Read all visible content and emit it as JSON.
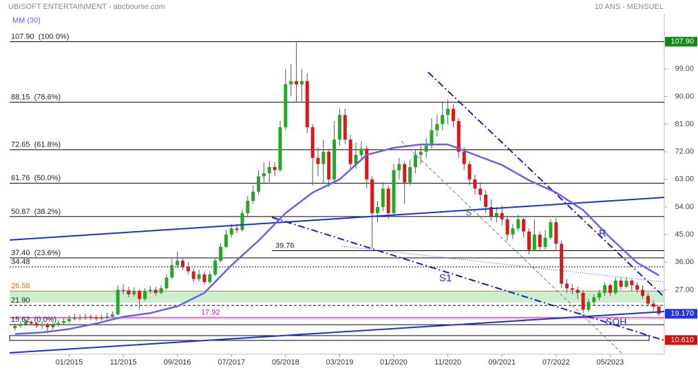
{
  "header": {
    "title": "UBISOFT ENTERTAINMENT - abcbourse.com",
    "period": "10 ANS - MENSUEL"
  },
  "chart_data": {
    "type": "candlestick",
    "open": [
      14.5,
      15.2,
      15.8,
      16.5,
      16.0,
      15.3,
      15.8,
      14.8,
      15.5,
      16.2,
      16.8,
      17.5,
      18.0,
      17.8,
      18.2,
      18.0,
      17.6,
      17.9,
      18.3,
      19.0,
      27.0,
      26.8,
      25.5,
      26.5,
      24.0,
      26.5,
      27.0,
      26.0,
      27.5,
      31.0,
      35.0,
      36.5,
      34.5,
      33.0,
      30.5,
      32.0,
      29.5,
      32.0,
      36.5,
      41.0,
      45.0,
      47.0,
      46.5,
      52.0,
      56.0,
      59.0,
      64.0,
      65.0,
      67.0,
      66.0,
      80.0,
      94.0,
      95.0,
      94.0,
      95.0,
      80.0,
      70.0,
      68.0,
      72.0,
      63.0,
      76.0,
      84.0,
      76.0,
      68.0,
      71.0,
      73.0,
      63.0,
      52.0,
      54.0,
      60.0,
      52.0,
      66.0,
      68.0,
      62.0,
      67.0,
      71.0,
      72.0,
      74.0,
      79.0,
      81.0,
      84.0,
      86.0,
      82.0,
      72.0,
      68.0,
      63.0,
      60.0,
      58.0,
      54.0,
      51.0,
      52.0,
      50.0,
      45.0,
      47.0,
      50.0,
      46.0,
      40.0,
      45.0,
      41.0,
      44.0,
      49.0,
      42.0,
      29.0,
      27.5,
      27.0,
      26.0,
      20.5,
      23.0,
      24.5,
      26.0,
      28.5,
      26.0,
      30.0,
      28.0,
      30.0,
      28.5,
      27.0,
      25.0,
      22.5,
      21.5
    ],
    "high": [
      16.0,
      16.5,
      17.2,
      17.0,
      16.6,
      16.4,
      16.2,
      16.3,
      17.0,
      17.8,
      18.6,
      19.2,
      19.0,
      19.3,
      19.0,
      18.8,
      18.9,
      19.5,
      20.0,
      28.5,
      28.8,
      28.0,
      27.8,
      27.2,
      27.5,
      28.2,
      28.0,
      28.5,
      32.0,
      37.0,
      39.5,
      37.5,
      36.0,
      34.0,
      33.5,
      33.0,
      33.0,
      37.5,
      42.0,
      46.5,
      48.5,
      48.5,
      53.0,
      57.5,
      61.0,
      66.0,
      68.5,
      69.0,
      68.5,
      82.0,
      99.0,
      100.5,
      107.9,
      99.0,
      97.5,
      81.0,
      73.5,
      76.0,
      73.0,
      82.0,
      86.0,
      86.0,
      77.5,
      75.0,
      75.5,
      74.0,
      64.0,
      56.0,
      62.0,
      61.0,
      68.0,
      70.0,
      69.0,
      69.5,
      72.5,
      74.5,
      76.5,
      83.0,
      84.0,
      88.0,
      89.0,
      87.5,
      83.0,
      73.5,
      69.0,
      64.5,
      62.0,
      59.5,
      56.5,
      54.0,
      54.5,
      51.0,
      48.5,
      51.5,
      50.5,
      47.0,
      50.0,
      46.0,
      46.5,
      50.0,
      50.5,
      43.0,
      30.5,
      29.0,
      28.0,
      27.0,
      24.0,
      25.5,
      27.0,
      29.5,
      29.0,
      31.0,
      31.0,
      31.0,
      30.5,
      29.5,
      28.5,
      26.0,
      23.5,
      22.0
    ],
    "low": [
      13.8,
      14.6,
      15.2,
      15.4,
      14.5,
      14.2,
      12.8,
      14.0,
      15.0,
      15.8,
      16.2,
      17.0,
      17.0,
      17.2,
      17.1,
      16.8,
      17.0,
      17.4,
      17.9,
      18.6,
      25.6,
      24.6,
      24.8,
      20.5,
      23.4,
      25.8,
      25.0,
      25.5,
      27.0,
      30.5,
      34.0,
      33.5,
      32.0,
      29.5,
      29.8,
      28.8,
      29.0,
      31.5,
      36.0,
      40.5,
      44.0,
      45.5,
      46.0,
      51.0,
      55.0,
      58.0,
      61.5,
      62.0,
      64.0,
      65.5,
      79.0,
      90.0,
      88.0,
      88.0,
      78.0,
      61.0,
      64.0,
      61.5,
      60.5,
      62.0,
      74.0,
      74.5,
      66.0,
      66.5,
      69.0,
      60.0,
      40.5,
      49.0,
      52.5,
      50.0,
      51.0,
      63.0,
      55.0,
      61.0,
      65.0,
      68.0,
      70.0,
      73.0,
      77.0,
      79.0,
      81.0,
      80.0,
      70.0,
      66.0,
      61.0,
      58.0,
      56.0,
      52.0,
      49.5,
      49.0,
      48.0,
      43.0,
      43.5,
      46.0,
      44.0,
      38.5,
      39.5,
      39.5,
      40.0,
      43.5,
      40.0,
      27.5,
      26.0,
      25.5,
      24.0,
      19.5,
      19.8,
      22.0,
      23.5,
      25.0,
      25.0,
      25.5,
      27.0,
      27.5,
      26.5,
      26.0,
      24.0,
      21.5,
      20.0,
      18.5
    ],
    "close": [
      15.2,
      15.8,
      16.5,
      16.0,
      15.3,
      15.8,
      14.8,
      15.5,
      16.2,
      16.8,
      17.5,
      18.0,
      17.8,
      18.2,
      18.0,
      17.6,
      17.9,
      18.3,
      19.0,
      27.0,
      26.8,
      25.5,
      26.5,
      24.0,
      26.5,
      27.0,
      26.0,
      27.5,
      31.0,
      35.0,
      36.5,
      34.5,
      33.0,
      30.5,
      32.0,
      29.5,
      32.0,
      36.5,
      41.0,
      45.0,
      47.0,
      46.5,
      52.0,
      56.0,
      59.0,
      64.0,
      65.0,
      67.0,
      66.0,
      80.0,
      94.0,
      95.0,
      94.0,
      95.0,
      80.0,
      70.0,
      68.0,
      72.0,
      63.0,
      76.0,
      84.0,
      76.0,
      68.0,
      71.0,
      73.0,
      63.0,
      52.0,
      54.0,
      60.0,
      52.0,
      66.0,
      68.0,
      62.0,
      67.0,
      71.0,
      72.0,
      74.0,
      79.0,
      81.0,
      84.0,
      86.0,
      82.0,
      72.0,
      68.0,
      63.0,
      60.0,
      58.0,
      54.0,
      51.0,
      52.0,
      50.0,
      45.0,
      47.0,
      50.0,
      46.0,
      40.0,
      45.0,
      41.0,
      44.0,
      49.0,
      42.0,
      29.0,
      27.5,
      27.0,
      26.0,
      20.5,
      23.0,
      24.5,
      26.0,
      28.5,
      26.0,
      30.0,
      28.0,
      30.0,
      28.5,
      27.0,
      25.0,
      22.5,
      21.5,
      19.17
    ],
    "up_color": "#22a822",
    "down_color": "#e01515",
    "xlim": [
      -1,
      120
    ],
    "xticks": [
      {
        "value": 10,
        "label": "01/2015"
      },
      {
        "value": 20,
        "label": "11/2015"
      },
      {
        "value": 30,
        "label": "09/2016"
      },
      {
        "value": 40,
        "label": "07/2017"
      },
      {
        "value": 50,
        "label": "05/2018"
      },
      {
        "value": 60,
        "label": "03/2019"
      },
      {
        "value": 70,
        "label": "01/2020"
      },
      {
        "value": 80,
        "label": "11/2020"
      },
      {
        "value": 90,
        "label": "09/2021"
      },
      {
        "value": 100,
        "label": "07/2022"
      },
      {
        "value": 110,
        "label": "05/2023"
      }
    ],
    "ylim": [
      6,
      117
    ],
    "yticks": [
      {
        "value": 99,
        "label": "99.00"
      },
      {
        "value": 90,
        "label": "90.00"
      },
      {
        "value": 81,
        "label": "81.00"
      },
      {
        "value": 72,
        "label": "72.00"
      },
      {
        "value": 63,
        "label": "63.00"
      },
      {
        "value": 54,
        "label": "54.00"
      },
      {
        "value": 45,
        "label": "45.00"
      },
      {
        "value": 36,
        "label": "36.00"
      },
      {
        "value": 27,
        "label": "27.00"
      }
    ],
    "moving_average": {
      "name": "MM (30)",
      "color": "#6262ee",
      "x": [
        0,
        5,
        10,
        15,
        20,
        25,
        30,
        35,
        40,
        45,
        50,
        55,
        60,
        65,
        70,
        75,
        80,
        85,
        90,
        95,
        100,
        105,
        110,
        115,
        119
      ],
      "values": [
        12.6,
        13.1,
        14.2,
        16.0,
        18.2,
        19.4,
        21.6,
        26.0,
        35.0,
        43.0,
        52.0,
        58.7,
        63.0,
        71.0,
        73.3,
        74.4,
        74.4,
        71.0,
        67.7,
        62.7,
        58.7,
        53.0,
        44.0,
        35.8,
        31.7
      ]
    },
    "levels": [
      {
        "value": 107.9,
        "label": "107.90  (100.0%)",
        "color": "#000000",
        "style": "solid"
      },
      {
        "value": 88.15,
        "label": "88.15  (78.6%)",
        "color": "#000000",
        "style": "solid"
      },
      {
        "value": 72.65,
        "label": "72.65  (61.8%)",
        "color": "#000000",
        "style": "solid"
      },
      {
        "value": 61.76,
        "label": "61.76  (50.0%)",
        "color": "#000000",
        "style": "solid"
      },
      {
        "value": 50.87,
        "label": "50.87  (38.2%)",
        "color": "#000000",
        "style": "solid"
      },
      {
        "value": 39.76,
        "label": "39.76",
        "color": "#000000",
        "style": "solid"
      },
      {
        "value": 37.4,
        "label": "37.40  (23.6%)",
        "color": "#000000",
        "style": "solid"
      },
      {
        "value": 34.48,
        "label": "34.48",
        "color": "#000000",
        "style": "dotted"
      },
      {
        "value": 26.58,
        "label": "26.58",
        "color": "#e07020",
        "style": "solid"
      },
      {
        "value": 21.9,
        "label": "21.90",
        "color": "#000000",
        "style": "dashed"
      },
      {
        "value": 17.92,
        "label": "17.92",
        "color": "#d020c0",
        "style": "solid"
      },
      {
        "value": 15.62,
        "label": "15.62  (0.0%)",
        "color": "#000000",
        "style": "solid"
      }
    ],
    "price_markers": [
      {
        "value": 107.9,
        "label": "107.90",
        "color": "#118811"
      },
      {
        "value": 19.17,
        "label": "19.170",
        "color": "#2233dd"
      },
      {
        "value": 10.61,
        "label": "10.610",
        "color": "#cc1111"
      }
    ],
    "annotations": [
      {
        "text": "S"
      },
      {
        "text": "R"
      },
      {
        "text": "S1"
      },
      {
        "text": "SOH"
      }
    ]
  }
}
